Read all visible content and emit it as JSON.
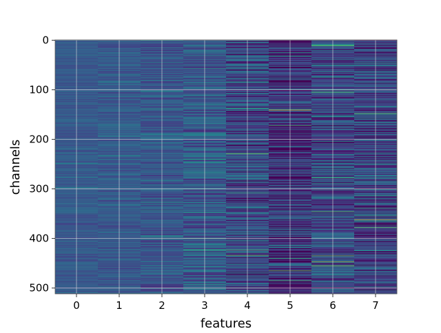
{
  "chart_data": {
    "type": "heatmap",
    "title": "",
    "xlabel": "features",
    "ylabel": "channels",
    "x_categories": [
      "0",
      "1",
      "2",
      "3",
      "4",
      "5",
      "6",
      "7"
    ],
    "y_ticks": [
      "0",
      "100",
      "200",
      "300",
      "400",
      "500"
    ],
    "n_rows": 512,
    "colormap": "viridis",
    "grid": true,
    "grid_color": "#dddddd",
    "column_stats": [
      {
        "feature": "0",
        "base": 0.35,
        "spread": 0.1
      },
      {
        "feature": "1",
        "base": 0.35,
        "spread": 0.12
      },
      {
        "feature": "2",
        "base": 0.33,
        "spread": 0.16
      },
      {
        "feature": "3",
        "base": 0.36,
        "spread": 0.22
      },
      {
        "feature": "4",
        "base": 0.28,
        "spread": 0.28
      },
      {
        "feature": "5",
        "base": 0.18,
        "spread": 0.3
      },
      {
        "feature": "6",
        "base": 0.28,
        "spread": 0.28
      },
      {
        "feature": "7",
        "base": 0.25,
        "spread": 0.3
      }
    ],
    "highlights": [
      {
        "feature": "2",
        "channel": 103,
        "value": 0.62
      },
      {
        "feature": "4",
        "channel": 138,
        "value": 0.75
      },
      {
        "feature": "5",
        "channel": 141,
        "value": 0.98
      },
      {
        "feature": "5",
        "channel": 172,
        "value": 0.8
      },
      {
        "feature": "7",
        "channel": 148,
        "value": 0.85
      },
      {
        "feature": "7",
        "channel": 362,
        "value": 0.95
      },
      {
        "feature": "7",
        "channel": 378,
        "value": 0.85
      },
      {
        "feature": "6",
        "channel": 447,
        "value": 0.9
      },
      {
        "feature": "3",
        "channel": 240,
        "value": 0.75
      },
      {
        "feature": "4",
        "channel": 434,
        "value": 0.85
      },
      {
        "feature": "5",
        "channel": 465,
        "value": 0.85
      },
      {
        "feature": "3",
        "channel": 400,
        "value": 0.8
      }
    ]
  }
}
